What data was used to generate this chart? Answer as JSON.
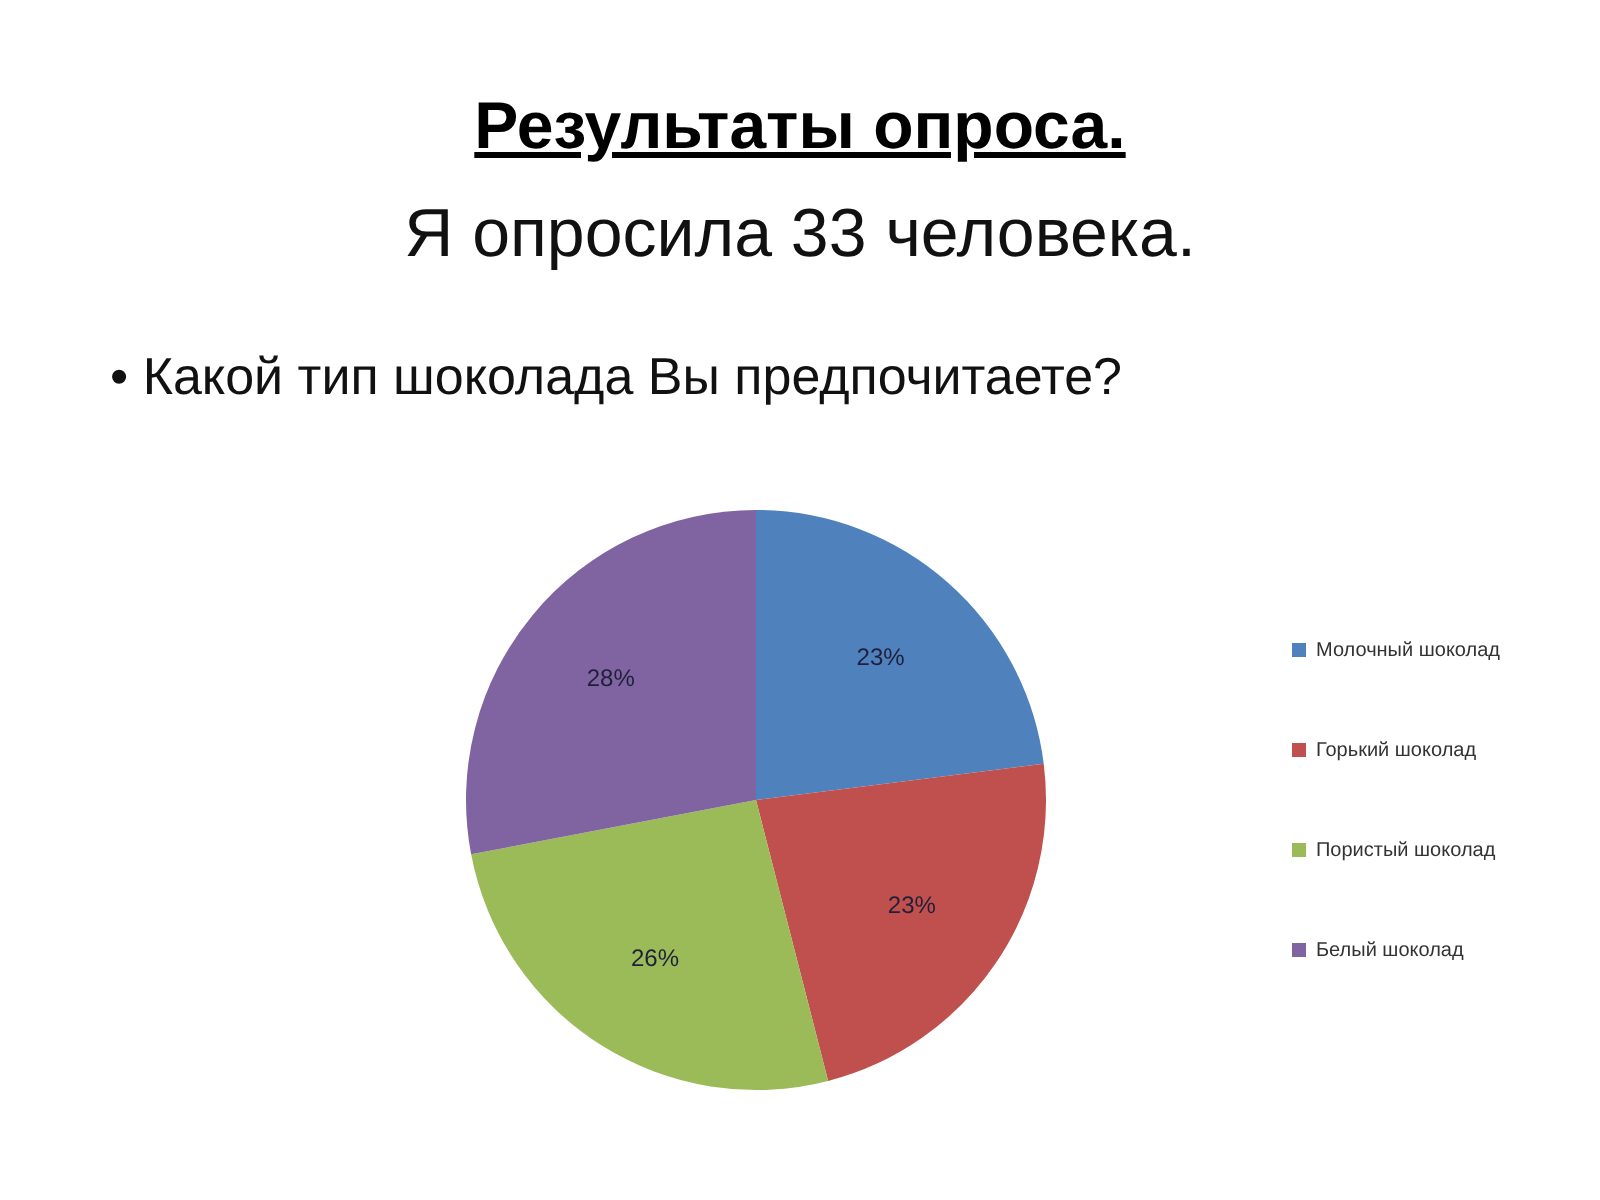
{
  "chart_data": {
    "type": "pie",
    "title": "Результаты опроса.",
    "subtitle": "Я опросила 33 человека.",
    "annotations": [
      "• Какой тип шоколада Вы предпочитаете?"
    ],
    "categories": [
      "Молочный шоколад",
      "Горький шоколад",
      "Пористый шоколад",
      "Белый шоколад"
    ],
    "values": [
      23,
      23,
      26,
      28
    ],
    "colors": [
      "#4f81bd",
      "#c0504d",
      "#9bbb59",
      "#8064a2"
    ],
    "value_labels": [
      "23%",
      "23%",
      "26%",
      "28%"
    ],
    "legend": "right"
  }
}
